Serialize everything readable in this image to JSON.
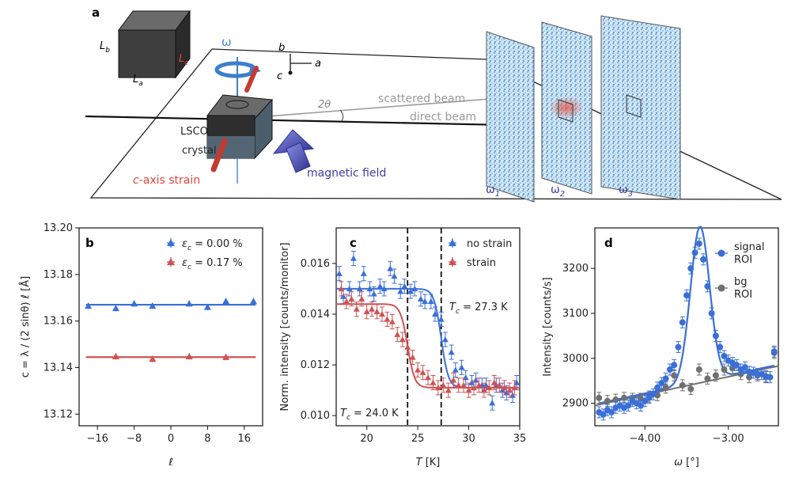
{
  "panel_a": {
    "letter": "a",
    "crystal_dims": {
      "La": "L",
      "La_sub": "a",
      "Lb": "L",
      "Lb_sub": "b",
      "Lc": "L",
      "Lc_sub": "c"
    },
    "omega_symbol": "ω",
    "axes": {
      "b": "b",
      "a": "a",
      "c": "c"
    },
    "sample_label_line1": "LSCO",
    "sample_label_line2": "crystal",
    "two_theta": "2θ",
    "scattered_beam": "scattered beam",
    "direct_beam": "direct beam",
    "strain_label_italic": "c",
    "strain_label_rest": "-axis strain",
    "magnetic_field": "magnetic field",
    "detector_labels": [
      {
        "symbol": "ω",
        "sub": "1"
      },
      {
        "symbol": "ω",
        "sub": "2"
      },
      {
        "symbol": "ω",
        "sub": "3"
      }
    ],
    "colors": {
      "strain_red": "#e0463c",
      "field_blue": "#3b3fa0",
      "omega_blue": "#4a90d9",
      "detector_blue": "#9fc8e8"
    }
  },
  "chart_data": [
    {
      "panel": "b",
      "type": "scatter",
      "ylabel": "c = λ / (2 sinθ) ℓ [Å]",
      "xlabel": "ℓ",
      "xlim": [
        -20,
        20
      ],
      "ylim": [
        13.115,
        13.2
      ],
      "xticks": [
        -16,
        -8,
        0,
        8,
        16
      ],
      "xtick_labels": [
        "−16",
        "−8",
        "0",
        "8",
        "16"
      ],
      "yticks": [
        13.12,
        13.14,
        13.16,
        13.18,
        13.2
      ],
      "ytick_labels": [
        "13.12",
        "13.14",
        "13.16",
        "13.18",
        "13.20"
      ],
      "legend_position": "top-right",
      "series": [
        {
          "name_prefix": "ε",
          "name_sub": "c",
          "name_value": " = 0.00 %",
          "color": "#3a6fd8",
          "x": [
            -18,
            -12,
            -8,
            -4,
            4,
            8,
            12,
            18
          ],
          "y": [
            13.1665,
            13.1655,
            13.1675,
            13.1665,
            13.1675,
            13.166,
            13.1685,
            13.1685
          ],
          "fit_y": 13.167
        },
        {
          "name_prefix": "ε",
          "name_sub": "c",
          "name_value": " = 0.17 %",
          "color": "#d05252",
          "x": [
            -12,
            -4,
            4,
            12
          ],
          "y": [
            13.1448,
            13.1437,
            13.1448,
            13.1445
          ],
          "fit_y": 13.1445
        }
      ]
    },
    {
      "panel": "c",
      "type": "scatter",
      "ylabel": "Norm. intensity [counts/monitor]",
      "xlabel_italic": "T",
      "xlabel_rest": " [K]",
      "xlim": [
        17,
        35
      ],
      "ylim": [
        0.0096,
        0.0174
      ],
      "xticks": [
        20,
        25,
        30,
        35
      ],
      "xtick_labels": [
        "20",
        "25",
        "30",
        "35"
      ],
      "yticks": [
        0.01,
        0.012,
        0.014,
        0.016
      ],
      "ytick_labels": [
        "0.010",
        "0.012",
        "0.014",
        "0.016"
      ],
      "vlines": [
        24.0,
        27.3
      ],
      "annotations": [
        {
          "italic": "T",
          "sub": "c",
          "rest": " = 27.3 K"
        },
        {
          "italic": "T",
          "sub": "c",
          "rest": " = 24.0 K"
        }
      ],
      "legend_position": "top-right",
      "series": [
        {
          "name": "no strain",
          "color": "#3a6fd8",
          "x": [
            17.3,
            17.7,
            18.3,
            18.7,
            19.3,
            19.7,
            20.3,
            20.7,
            21.3,
            21.7,
            22.3,
            22.7,
            23.3,
            23.7,
            24.3,
            24.7,
            25.3,
            25.7,
            26.3,
            26.7,
            27.3,
            27.7,
            28.3,
            28.7,
            29.3,
            29.7,
            30.3,
            30.7,
            31.3,
            31.7,
            32.3,
            32.7,
            33.3,
            33.7,
            34.3,
            34.7
          ],
          "y": [
            0.0156,
            0.0147,
            0.015,
            0.0162,
            0.015,
            0.0156,
            0.015,
            0.0148,
            0.0151,
            0.015,
            0.0158,
            0.0155,
            0.0149,
            0.0151,
            0.0149,
            0.015,
            0.0146,
            0.0145,
            0.0145,
            0.014,
            0.0138,
            0.013,
            0.0125,
            0.0118,
            0.0119,
            0.0115,
            0.0113,
            0.0114,
            0.0112,
            0.0112,
            0.0105,
            0.0112,
            0.011,
            0.0109,
            0.0108,
            0.0113
          ],
          "fit_low": 0.0111,
          "fit_high": 0.015,
          "fit_tc": 27.3
        },
        {
          "name": "strain",
          "color": "#d05252",
          "x": [
            17.5,
            18.0,
            18.5,
            19.0,
            19.5,
            20.0,
            20.5,
            21.0,
            21.5,
            22.0,
            22.5,
            23.0,
            23.5,
            24.0,
            24.5,
            25.0,
            25.5,
            26.0,
            26.5,
            27.0,
            27.5,
            28.0,
            28.5,
            29.0,
            29.5,
            30.0,
            30.5,
            31.0,
            31.5,
            32.0,
            32.5,
            33.0,
            33.5,
            34.0,
            34.5
          ],
          "y": [
            0.015,
            0.0145,
            0.0146,
            0.0142,
            0.0146,
            0.0141,
            0.0142,
            0.0141,
            0.014,
            0.0138,
            0.0137,
            0.0132,
            0.013,
            0.0127,
            0.0123,
            0.0118,
            0.0117,
            0.0115,
            0.0113,
            0.0111,
            0.0112,
            0.011,
            0.0114,
            0.0112,
            0.0112,
            0.011,
            0.0111,
            0.0112,
            0.011,
            0.0111,
            0.0113,
            0.0112,
            0.0111,
            0.011,
            0.0111
          ],
          "fit_low": 0.0111,
          "fit_high": 0.0144,
          "fit_tc": 24.0
        }
      ]
    },
    {
      "panel": "d",
      "type": "scatter",
      "ylabel": "Intensity [counts/s]",
      "xlabel_italic": "ω",
      "xlabel_rest": " [°]",
      "xlim": [
        -4.6,
        -2.4
      ],
      "ylim": [
        2850,
        3290
      ],
      "xticks": [
        -4.0,
        -3.0
      ],
      "xtick_labels": [
        "−4.00",
        "−3.00"
      ],
      "yticks": [
        2900,
        3000,
        3100,
        3200
      ],
      "ytick_labels": [
        "2900",
        "3000",
        "3100",
        "3200"
      ],
      "legend_position": "top-right",
      "series": [
        {
          "name_line1": "signal",
          "name_line2": "ROI",
          "color": "#3a6fd8",
          "x": [
            -4.55,
            -4.5,
            -4.45,
            -4.4,
            -4.35,
            -4.3,
            -4.25,
            -4.2,
            -4.15,
            -4.1,
            -4.05,
            -4.0,
            -3.95,
            -3.9,
            -3.85,
            -3.8,
            -3.75,
            -3.7,
            -3.65,
            -3.6,
            -3.55,
            -3.5,
            -3.45,
            -3.4,
            -3.35,
            -3.3,
            -3.25,
            -3.2,
            -3.15,
            -3.1,
            -3.05,
            -3.0,
            -2.95,
            -2.9,
            -2.85,
            -2.8,
            -2.75,
            -2.7,
            -2.65,
            -2.6,
            -2.55,
            -2.5,
            -2.45
          ],
          "y": [
            2880,
            2875,
            2885,
            2880,
            2890,
            2895,
            2890,
            2895,
            2905,
            2900,
            2895,
            2905,
            2915,
            2920,
            2935,
            2945,
            2955,
            2975,
            2985,
            3025,
            3080,
            3140,
            3200,
            3235,
            3255,
            3220,
            3160,
            3100,
            3050,
            3025,
            3005,
            2995,
            2990,
            2985,
            2975,
            2980,
            2970,
            2968,
            2965,
            2965,
            2960,
            2958,
            3015
          ],
          "fit_base_a": 2898,
          "fit_base_b": 40,
          "fit_amp": 345,
          "fit_center": -3.34,
          "fit_sigma": 0.115
        },
        {
          "name_line1": "bg",
          "name_line2": "ROI",
          "color": "#707070",
          "x": [
            -4.55,
            -4.45,
            -4.35,
            -4.25,
            -4.15,
            -4.05,
            -3.95,
            -3.85,
            -3.75,
            -3.65,
            -3.55,
            -3.45,
            -3.35,
            -3.25,
            -3.15,
            -3.05,
            -2.95,
            -2.85,
            -2.75,
            -2.65,
            -2.55,
            -2.45
          ],
          "y": [
            2912,
            2905,
            2908,
            2912,
            2910,
            2910,
            2912,
            2918,
            2935,
            2962,
            2940,
            2932,
            2975,
            2955,
            2962,
            2975,
            2978,
            2965,
            2958,
            2962,
            2958,
            3012
          ],
          "fit_a": 2895,
          "fit_b": 40
        }
      ]
    }
  ]
}
